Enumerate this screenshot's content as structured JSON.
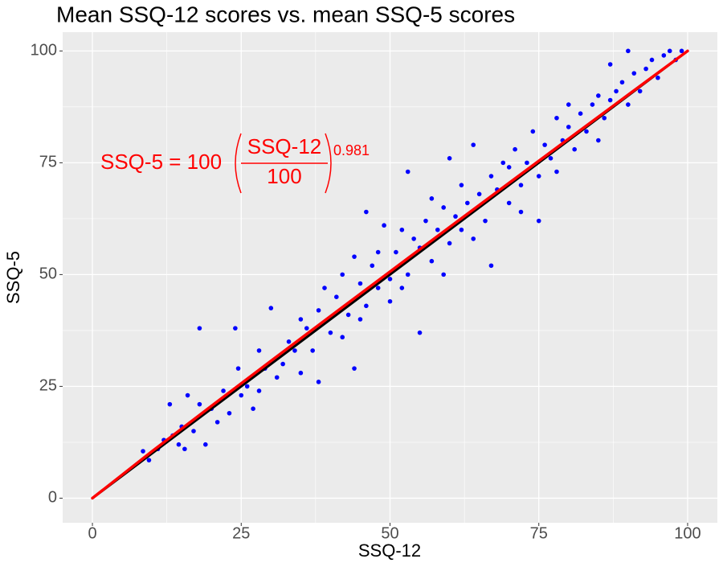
{
  "chart_data": {
    "type": "scatter",
    "title": "Mean SSQ-12 scores vs. mean SSQ-5 scores",
    "x_label": "SSQ-12",
    "y_label": "SSQ-5",
    "xlim": [
      -5,
      105
    ],
    "ylim": [
      -5.5,
      104.2
    ],
    "xticks": [
      0,
      25,
      50,
      75,
      100
    ],
    "yticks": [
      0,
      25,
      50,
      75,
      100
    ],
    "grid": true,
    "minor_grid": true,
    "annotation": {
      "lhs": "SSQ-5 = 100",
      "numerator": "SSQ-12",
      "denominator": "100",
      "exponent": "0.981",
      "color": "#ff0000"
    },
    "points": {
      "color": "#0000ff",
      "x": [
        8.5,
        9.5,
        11,
        12,
        13,
        13.5,
        14.5,
        15,
        15.5,
        16,
        17,
        18,
        18,
        19,
        20,
        21,
        22,
        23,
        24,
        24.5,
        25,
        26,
        27,
        28,
        28,
        29,
        30,
        31,
        32,
        33,
        34,
        35,
        35,
        36,
        37,
        38,
        38,
        39,
        40,
        41,
        42,
        42,
        43,
        44,
        44,
        45,
        45,
        46,
        46,
        47,
        48,
        48,
        49,
        50,
        50,
        51,
        52,
        52,
        53,
        53,
        54,
        55,
        55,
        56,
        57,
        57,
        58,
        59,
        59,
        60,
        60,
        61,
        62,
        62,
        63,
        64,
        64,
        65,
        66,
        67,
        67,
        68,
        69,
        70,
        70,
        71,
        72,
        72,
        73,
        74,
        75,
        75,
        76,
        77,
        78,
        78,
        79,
        80,
        80,
        81,
        82,
        83,
        84,
        85,
        85,
        86,
        87,
        87,
        88,
        89,
        90,
        90,
        91,
        92,
        93,
        94,
        95,
        96,
        97,
        98,
        99
      ],
      "y": [
        10.5,
        8.5,
        11,
        13,
        21,
        14,
        12,
        16,
        11,
        23,
        15,
        38,
        21,
        12,
        20,
        17,
        24,
        19,
        38,
        29,
        23,
        25,
        20,
        24,
        33,
        29,
        42.5,
        27,
        30,
        35,
        33,
        40,
        28,
        38,
        33,
        42,
        26,
        47,
        37,
        45,
        36,
        50,
        41,
        29,
        54,
        48,
        40,
        64,
        43,
        52,
        47,
        55,
        61,
        49,
        44,
        55,
        60,
        47,
        73,
        50,
        58,
        37,
        56,
        62,
        53,
        67,
        60,
        65,
        50,
        57,
        76,
        63,
        60,
        70,
        66,
        79,
        58,
        68,
        62,
        72,
        52,
        69,
        75,
        66,
        74,
        78,
        70,
        64,
        75,
        82,
        72,
        62,
        79,
        76,
        85,
        73,
        80,
        83,
        88,
        78,
        86,
        82,
        88,
        90,
        80,
        85,
        97,
        89,
        91,
        93,
        100,
        88,
        95,
        91,
        96,
        98,
        94,
        99,
        100,
        98,
        100
      ]
    },
    "lines": [
      {
        "color": "#000000",
        "x": [
          0,
          100
        ],
        "y": [
          0,
          100
        ]
      },
      {
        "color": "#ff0000",
        "x": [
          0,
          10,
          20,
          30,
          40,
          50,
          60,
          70,
          80,
          90,
          100
        ],
        "y": [
          0,
          10.45,
          20.62,
          30.69,
          40.7,
          50.66,
          60.59,
          70.48,
          80.34,
          90.18,
          100
        ]
      }
    ]
  }
}
